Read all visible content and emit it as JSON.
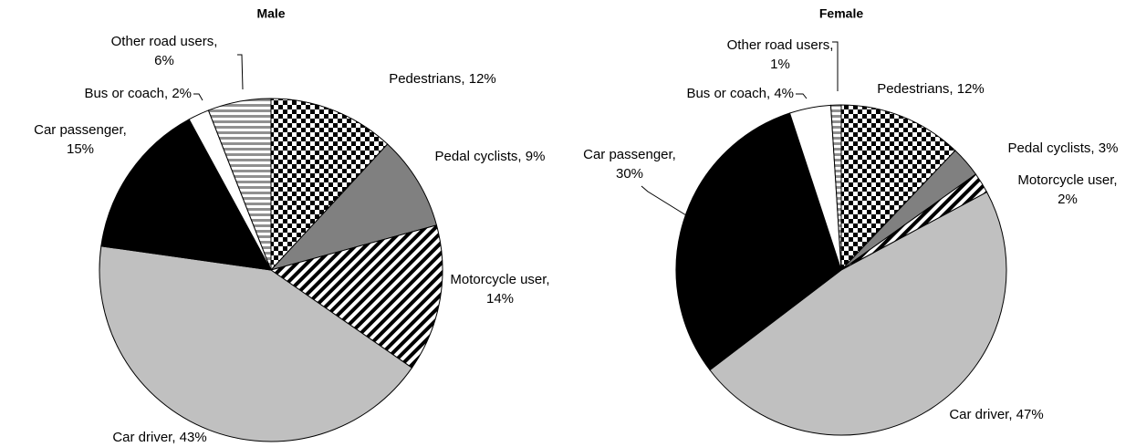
{
  "chart_data": [
    {
      "type": "pie",
      "title": "Male",
      "labels": [
        "Pedestrians, 12%",
        "Pedal cyclists, 9%",
        "Motorcycle user, 14%",
        "Car driver, 43%",
        "Car passenger, 15%",
        "Bus or coach, 2%",
        "Other road users, 6%"
      ],
      "values": [
        12,
        9,
        14,
        43,
        15,
        2,
        6
      ],
      "fills": [
        "checker",
        "#808080",
        "diagonal",
        "#c0c0c0",
        "#000000",
        "#ffffff",
        "hstripe"
      ]
    },
    {
      "type": "pie",
      "title": "Female",
      "labels": [
        "Pedestrians, 12%",
        "Pedal cyclists, 3%",
        "Motorcycle user, 2%",
        "Car driver, 47%",
        "Car passenger, 30%",
        "Bus or coach, 4%",
        "Other road users, 1%"
      ],
      "values": [
        12,
        3,
        2,
        47,
        30,
        4,
        1
      ],
      "fills": [
        "checker",
        "#808080",
        "diagonal",
        "#c0c0c0",
        "#000000",
        "#ffffff",
        "hstripe"
      ]
    }
  ]
}
